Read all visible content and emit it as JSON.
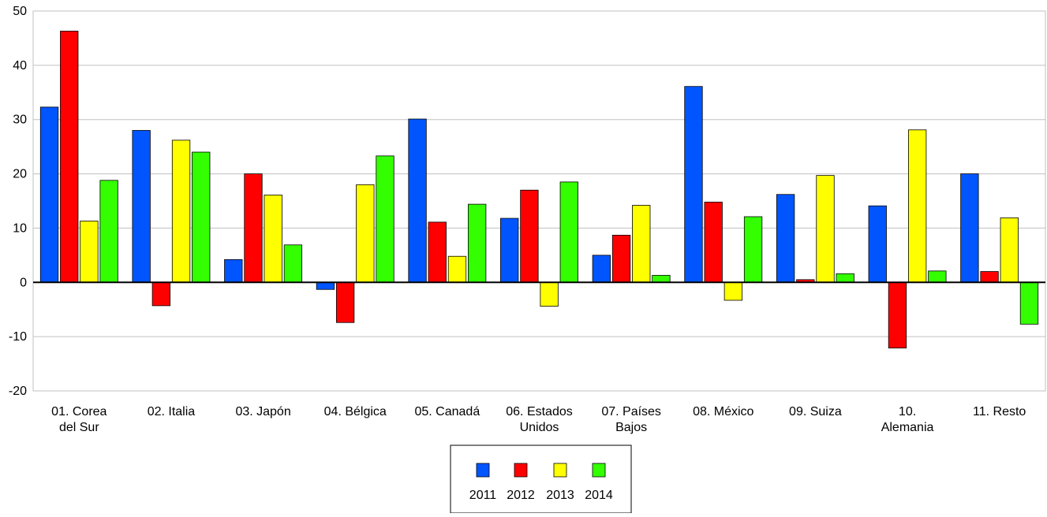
{
  "chart_data": {
    "type": "bar",
    "title": "",
    "xlabel": "",
    "ylabel": "",
    "ylim": [
      -20,
      50
    ],
    "yticks": [
      -20,
      -10,
      0,
      10,
      20,
      30,
      40,
      50
    ],
    "ytick_labels": [
      "-20",
      "-10",
      "0",
      "10",
      "20",
      "30",
      "40",
      "50"
    ],
    "grid": true,
    "legend_position": "bottom-center",
    "categories": [
      [
        "01. Corea",
        "del Sur"
      ],
      [
        "02. Italia"
      ],
      [
        "03. Japón"
      ],
      [
        "04. Bélgica"
      ],
      [
        "05. Canadá"
      ],
      [
        "06. Estados",
        "Unidos"
      ],
      [
        "07. Países",
        "Bajos"
      ],
      [
        "08. México"
      ],
      [
        "09. Suiza"
      ],
      [
        "10.",
        "Alemania"
      ],
      [
        "11. Resto"
      ]
    ],
    "series": [
      {
        "name": "2011",
        "color": "#0055FF",
        "values": [
          32.3,
          28.0,
          4.2,
          -1.3,
          30.1,
          11.8,
          5.0,
          36.1,
          16.2,
          14.1,
          20.0
        ]
      },
      {
        "name": "2012",
        "color": "#FF0000",
        "values": [
          46.3,
          -4.3,
          20.0,
          -7.4,
          11.1,
          17.0,
          8.7,
          14.8,
          0.5,
          -12.1,
          2.0
        ]
      },
      {
        "name": "2013",
        "color": "#FFFF00",
        "values": [
          11.3,
          26.2,
          16.1,
          18.0,
          4.8,
          -4.4,
          14.2,
          -3.3,
          19.7,
          28.1,
          11.9
        ]
      },
      {
        "name": "2014",
        "color": "#33FF00",
        "values": [
          18.8,
          24.0,
          6.9,
          23.3,
          14.4,
          18.5,
          1.3,
          12.1,
          1.6,
          2.1,
          -7.7
        ]
      }
    ]
  }
}
